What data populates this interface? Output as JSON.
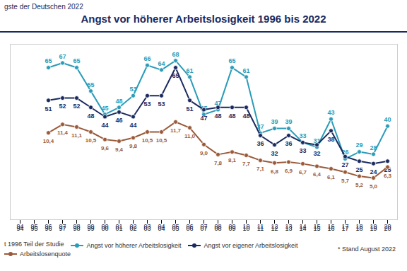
{
  "chart_data": {
    "type": "line",
    "title": "Angst vor höherer Arbeitslosigkeit 1996 bis 2022",
    "subtitle": "gste der Deutschen 2022",
    "annotations": [
      "t 1996 Teil der Studie",
      "* Stand August 2022"
    ],
    "categories": [
      "94",
      "95",
      "96",
      "97",
      "98",
      "99",
      "00",
      "01",
      "02",
      "03",
      "04",
      "05",
      "06",
      "07",
      "08",
      "09",
      "10",
      "11",
      "12",
      "13",
      "14",
      "15",
      "16",
      "17",
      "18",
      "19",
      "20"
    ],
    "series": [
      {
        "name": "Angst vor höherer Arbeitslosigkeit",
        "color": "#2a9cb8",
        "marker": "circle",
        "values": [
          null,
          null,
          65,
          67,
          65,
          55,
          45,
          48,
          53,
          66,
          64,
          68,
          61,
          45,
          47,
          65,
          61,
          37,
          39,
          39,
          33,
          31,
          43,
          26,
          29,
          28,
          40
        ]
      },
      {
        "name": "Angst vor eigener Arbeitslosigkeit",
        "color": "#1b2a5e",
        "marker": "circle",
        "values": [
          null,
          null,
          51,
          52,
          52,
          48,
          44,
          46,
          44,
          53,
          53,
          65,
          51,
          47,
          48,
          48,
          48,
          36,
          32,
          36,
          33,
          32,
          38,
          27,
          25,
          24,
          25
        ]
      },
      {
        "name": "Arbeitslosenquote",
        "color": "#9a5a3a",
        "marker": "circle",
        "axis": "y2",
        "values": [
          null,
          null,
          10.4,
          11.4,
          11.1,
          10.5,
          9.6,
          9.4,
          9.8,
          10.5,
          10.5,
          11.7,
          11.0,
          9.0,
          7.8,
          8.1,
          7.7,
          7.1,
          6.8,
          6.9,
          6.7,
          6.4,
          6.1,
          5.7,
          5.2,
          5.0,
          6.3
        ],
        "value_labels": [
          null,
          null,
          "10,4",
          "11,4",
          "11,1",
          "10,5",
          "9,6",
          "9,4",
          "9,8",
          "10,5",
          "10,5",
          "11,7",
          "11,0",
          "9,0",
          "7,8",
          "8,1",
          "7,7",
          "7,1",
          "6,8",
          "6,9",
          "6,7",
          "6,4",
          "6,1",
          "5,7",
          "5,2",
          "5,0",
          "6,3"
        ]
      }
    ],
    "ylim": [
      0,
      75
    ],
    "yticks": [],
    "y2lim": [
      0,
      21
    ],
    "y2ticks": [],
    "tick_labels": "x",
    "data_labels": true,
    "grid": false,
    "legend": "bottom"
  }
}
